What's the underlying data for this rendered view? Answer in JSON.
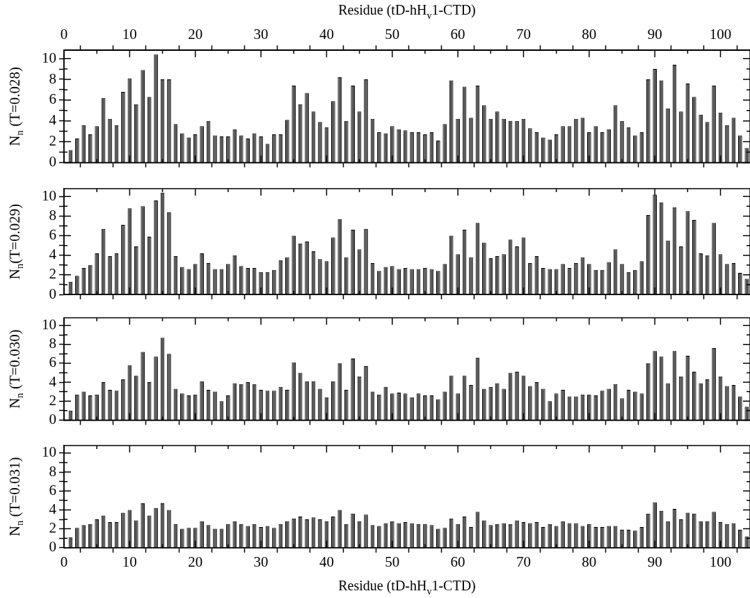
{
  "chart_data": [
    {
      "type": "bar",
      "x2label": "Residue (tD-hH$_{v}$1-CTD)",
      "ylabel": "N$_{n}$ (T=0.028)",
      "color": "#5a5a5a",
      "tick_labels": "y",
      "x": [
        1,
        2,
        3,
        4,
        5,
        6,
        7,
        8,
        9,
        10,
        11,
        12,
        13,
        14,
        15,
        16,
        17,
        18,
        19,
        20,
        21,
        22,
        23,
        24,
        25,
        26,
        27,
        28,
        29,
        30,
        31,
        32,
        33,
        34,
        35,
        36,
        37,
        38,
        39,
        40,
        41,
        42,
        43,
        44,
        45,
        46,
        47,
        48,
        49,
        50,
        51,
        52,
        53,
        54,
        55,
        56,
        57,
        58,
        59,
        60,
        61,
        62,
        63,
        64,
        65,
        66,
        67,
        68,
        69,
        70,
        71,
        72,
        73,
        74,
        75,
        76,
        77,
        78,
        79,
        80,
        81,
        82,
        83,
        84,
        85,
        86,
        87,
        88,
        89,
        90,
        91,
        92,
        93,
        94,
        95,
        96,
        97,
        98,
        99,
        100,
        101,
        102,
        103,
        104
      ],
      "values": [
        1.2,
        2.3,
        3.6,
        2.7,
        3.5,
        6.2,
        4.2,
        3.6,
        6.8,
        8.1,
        5.6,
        8.9,
        6.3,
        10.4,
        8.0,
        8.0,
        3.7,
        2.8,
        2.4,
        2.7,
        3.5,
        4.0,
        2.6,
        2.5,
        2.5,
        3.2,
        2.6,
        2.3,
        2.8,
        2.5,
        1.8,
        2.7,
        2.7,
        4.1,
        7.4,
        5.6,
        6.7,
        4.9,
        3.9,
        3.4,
        5.9,
        8.2,
        4.0,
        7.4,
        4.9,
        8.0,
        4.2,
        2.9,
        2.8,
        3.5,
        3.2,
        3.1,
        2.9,
        2.9,
        2.7,
        2.9,
        2.1,
        3.7,
        7.9,
        4.2,
        7.3,
        4.3,
        7.4,
        5.5,
        4.2,
        4.9,
        4.2,
        4.0,
        4.0,
        4.2,
        3.3,
        2.9,
        2.4,
        2.2,
        2.7,
        3.5,
        3.5,
        4.2,
        4.3,
        2.9,
        3.5,
        2.9,
        3.2,
        5.5,
        4.0,
        3.4,
        2.6,
        2.9,
        8.0,
        9.0,
        7.9,
        5.2,
        9.4,
        4.9,
        7.6,
        6.3,
        4.6,
        3.9,
        7.4,
        4.8,
        3.6,
        4.3,
        2.6,
        1.4
      ],
      "xlim": [
        0,
        104.5
      ],
      "xticks": [
        0,
        {
          "value": 5,
          "label": null
        },
        10,
        {
          "value": 15,
          "label": null
        },
        20,
        {
          "value": 25,
          "label": null
        },
        30,
        {
          "value": 35,
          "label": null
        },
        40,
        {
          "value": 45,
          "label": null
        },
        50,
        {
          "value": 55,
          "label": null
        },
        60,
        {
          "value": 65,
          "label": null
        },
        70,
        {
          "value": 75,
          "label": null
        },
        80,
        {
          "value": 85,
          "label": null
        },
        90,
        {
          "value": 95,
          "label": null
        },
        100
      ],
      "x2lim": [
        0,
        104.5
      ],
      "x2ticks": [
        0,
        {
          "value": 5,
          "label": null
        },
        10,
        {
          "value": 15,
          "label": null
        },
        20,
        {
          "value": 25,
          "label": null
        },
        30,
        {
          "value": 35,
          "label": null
        },
        40,
        {
          "value": 45,
          "label": null
        },
        50,
        {
          "value": 55,
          "label": null
        },
        60,
        {
          "value": 65,
          "label": null
        },
        70,
        {
          "value": 75,
          "label": null
        },
        80,
        {
          "value": 85,
          "label": null
        },
        90,
        {
          "value": 95,
          "label": null
        },
        100
      ],
      "ylim": [
        0,
        10.8
      ],
      "yticks": [
        0,
        {
          "value": 1,
          "label": null
        },
        2,
        {
          "value": 3,
          "label": null
        },
        4,
        {
          "value": 5,
          "label": null
        },
        6,
        {
          "value": 7,
          "label": null
        },
        8,
        {
          "value": 9,
          "label": null
        },
        10
      ]
    },
    {
      "type": "bar",
      "ylabel": "N$_{n}$(T=0.029)",
      "color": "#5a5a5a",
      "tick_labels": "y",
      "x": [
        1,
        2,
        3,
        4,
        5,
        6,
        7,
        8,
        9,
        10,
        11,
        12,
        13,
        14,
        15,
        16,
        17,
        18,
        19,
        20,
        21,
        22,
        23,
        24,
        25,
        26,
        27,
        28,
        29,
        30,
        31,
        32,
        33,
        34,
        35,
        36,
        37,
        38,
        39,
        40,
        41,
        42,
        43,
        44,
        45,
        46,
        47,
        48,
        49,
        50,
        51,
        52,
        53,
        54,
        55,
        56,
        57,
        58,
        59,
        60,
        61,
        62,
        63,
        64,
        65,
        66,
        67,
        68,
        69,
        70,
        71,
        72,
        73,
        74,
        75,
        76,
        77,
        78,
        79,
        80,
        81,
        82,
        83,
        84,
        85,
        86,
        87,
        88,
        89,
        90,
        91,
        92,
        93,
        94,
        95,
        96,
        97,
        98,
        99,
        100,
        101,
        102,
        103,
        104
      ],
      "values": [
        1.3,
        1.9,
        2.7,
        3.0,
        4.2,
        6.7,
        3.9,
        4.2,
        7.1,
        8.8,
        4.9,
        9.0,
        5.9,
        9.6,
        10.4,
        8.4,
        3.9,
        2.8,
        2.6,
        3.1,
        4.2,
        3.2,
        2.6,
        2.6,
        3.1,
        4.0,
        2.9,
        2.7,
        2.7,
        2.3,
        2.3,
        2.5,
        3.5,
        3.8,
        6.0,
        5.2,
        5.4,
        4.4,
        3.6,
        3.4,
        5.8,
        7.7,
        3.8,
        6.6,
        4.6,
        6.7,
        3.2,
        2.4,
        2.8,
        2.9,
        2.6,
        2.7,
        2.6,
        2.6,
        2.7,
        2.6,
        2.4,
        3.1,
        6.0,
        4.1,
        6.6,
        3.8,
        7.3,
        5.3,
        3.7,
        3.9,
        4.1,
        5.6,
        4.9,
        5.8,
        3.2,
        3.9,
        2.7,
        2.6,
        2.6,
        3.1,
        2.7,
        3.2,
        3.8,
        3.1,
        2.5,
        2.5,
        3.3,
        4.6,
        3.1,
        2.3,
        2.5,
        3.4,
        8.1,
        10.2,
        9.4,
        5.5,
        8.9,
        4.9,
        8.5,
        7.6,
        4.2,
        4.0,
        7.3,
        4.1,
        3.1,
        3.2,
        2.2,
        1.6
      ],
      "xlim": [
        0,
        104.5
      ],
      "xticks": [
        0,
        {
          "value": 5,
          "label": null
        },
        10,
        {
          "value": 15,
          "label": null
        },
        20,
        {
          "value": 25,
          "label": null
        },
        30,
        {
          "value": 35,
          "label": null
        },
        40,
        {
          "value": 45,
          "label": null
        },
        50,
        {
          "value": 55,
          "label": null
        },
        60,
        {
          "value": 65,
          "label": null
        },
        70,
        {
          "value": 75,
          "label": null
        },
        80,
        {
          "value": 85,
          "label": null
        },
        90,
        {
          "value": 95,
          "label": null
        },
        100
      ],
      "ylim": [
        0,
        10.8
      ],
      "yticks": [
        0,
        {
          "value": 1,
          "label": null
        },
        2,
        {
          "value": 3,
          "label": null
        },
        4,
        {
          "value": 5,
          "label": null
        },
        6,
        {
          "value": 7,
          "label": null
        },
        8,
        {
          "value": 9,
          "label": null
        },
        10
      ]
    },
    {
      "type": "bar",
      "ylabel": "N$_{n}$ (T=0.030)",
      "color": "#5a5a5a",
      "tick_labels": "y",
      "x": [
        1,
        2,
        3,
        4,
        5,
        6,
        7,
        8,
        9,
        10,
        11,
        12,
        13,
        14,
        15,
        16,
        17,
        18,
        19,
        20,
        21,
        22,
        23,
        24,
        25,
        26,
        27,
        28,
        29,
        30,
        31,
        32,
        33,
        34,
        35,
        36,
        37,
        38,
        39,
        40,
        41,
        42,
        43,
        44,
        45,
        46,
        47,
        48,
        49,
        50,
        51,
        52,
        53,
        54,
        55,
        56,
        57,
        58,
        59,
        60,
        61,
        62,
        63,
        64,
        65,
        66,
        67,
        68,
        69,
        70,
        71,
        72,
        73,
        74,
        75,
        76,
        77,
        78,
        79,
        80,
        81,
        82,
        83,
        84,
        85,
        86,
        87,
        88,
        89,
        90,
        91,
        92,
        93,
        94,
        95,
        96,
        97,
        98,
        99,
        100,
        101,
        102,
        103,
        104
      ],
      "values": [
        1.0,
        2.7,
        3.0,
        2.6,
        2.7,
        4.0,
        3.2,
        3.1,
        4.3,
        5.8,
        4.7,
        7.2,
        4.0,
        6.7,
        8.7,
        7.0,
        3.3,
        2.8,
        2.6,
        2.7,
        4.1,
        3.2,
        3.0,
        2.0,
        2.6,
        3.9,
        3.8,
        4.0,
        3.8,
        3.2,
        3.1,
        3.1,
        3.5,
        3.2,
        6.1,
        5.0,
        4.1,
        4.1,
        3.3,
        2.4,
        4.1,
        6.0,
        3.2,
        6.5,
        4.6,
        5.7,
        3.0,
        2.7,
        3.5,
        2.8,
        2.9,
        2.8,
        2.4,
        2.8,
        2.6,
        2.6,
        2.2,
        3.0,
        4.7,
        2.8,
        4.7,
        3.7,
        6.6,
        3.3,
        3.5,
        3.9,
        3.3,
        5.0,
        5.1,
        4.7,
        3.6,
        4.0,
        3.3,
        2.0,
        2.8,
        3.2,
        2.5,
        2.5,
        2.7,
        2.7,
        2.6,
        3.1,
        3.3,
        3.8,
        2.3,
        3.2,
        3.0,
        2.8,
        6.0,
        7.3,
        6.7,
        3.9,
        7.3,
        4.6,
        6.8,
        5.1,
        3.9,
        4.3,
        7.6,
        4.6,
        3.6,
        3.7,
        2.5,
        1.4
      ],
      "xlim": [
        0,
        104.5
      ],
      "xticks": [
        0,
        {
          "value": 5,
          "label": null
        },
        10,
        {
          "value": 15,
          "label": null
        },
        20,
        {
          "value": 25,
          "label": null
        },
        30,
        {
          "value": 35,
          "label": null
        },
        40,
        {
          "value": 45,
          "label": null
        },
        50,
        {
          "value": 55,
          "label": null
        },
        60,
        {
          "value": 65,
          "label": null
        },
        70,
        {
          "value": 75,
          "label": null
        },
        80,
        {
          "value": 85,
          "label": null
        },
        90,
        {
          "value": 95,
          "label": null
        },
        100
      ],
      "ylim": [
        0,
        10.8
      ],
      "yticks": [
        0,
        {
          "value": 1,
          "label": null
        },
        2,
        {
          "value": 3,
          "label": null
        },
        4,
        {
          "value": 5,
          "label": null
        },
        6,
        {
          "value": 7,
          "label": null
        },
        8,
        {
          "value": 9,
          "label": null
        },
        10
      ]
    },
    {
      "type": "bar",
      "xlabel": "Residue (tD-hH$_{v}$1-CTD)",
      "ylabel": "N$_{n}$ (T=0.031)",
      "color": "#5a5a5a",
      "x": [
        1,
        2,
        3,
        4,
        5,
        6,
        7,
        8,
        9,
        10,
        11,
        12,
        13,
        14,
        15,
        16,
        17,
        18,
        19,
        20,
        21,
        22,
        23,
        24,
        25,
        26,
        27,
        28,
        29,
        30,
        31,
        32,
        33,
        34,
        35,
        36,
        37,
        38,
        39,
        40,
        41,
        42,
        43,
        44,
        45,
        46,
        47,
        48,
        49,
        50,
        51,
        52,
        53,
        54,
        55,
        56,
        57,
        58,
        59,
        60,
        61,
        62,
        63,
        64,
        65,
        66,
        67,
        68,
        69,
        70,
        71,
        72,
        73,
        74,
        75,
        76,
        77,
        78,
        79,
        80,
        81,
        82,
        83,
        84,
        85,
        86,
        87,
        88,
        89,
        90,
        91,
        92,
        93,
        94,
        95,
        96,
        97,
        98,
        99,
        100,
        101,
        102,
        103,
        104
      ],
      "values": [
        1.1,
        2.1,
        2.4,
        2.5,
        3.0,
        3.4,
        2.7,
        2.7,
        3.7,
        4.0,
        2.9,
        4.7,
        3.4,
        4.2,
        4.7,
        4.0,
        2.5,
        2.0,
        2.1,
        2.1,
        2.8,
        2.4,
        2.0,
        2.0,
        2.5,
        2.8,
        2.5,
        2.3,
        2.5,
        2.2,
        2.3,
        2.1,
        2.5,
        2.8,
        3.1,
        3.3,
        3.0,
        3.2,
        3.0,
        2.8,
        3.3,
        4.0,
        2.5,
        3.6,
        2.8,
        3.5,
        2.4,
        2.3,
        2.6,
        2.8,
        2.6,
        2.7,
        2.6,
        2.5,
        2.5,
        2.4,
        2.0,
        2.1,
        3.1,
        2.5,
        3.3,
        2.2,
        3.8,
        2.9,
        2.4,
        2.5,
        2.6,
        2.5,
        2.9,
        2.7,
        2.6,
        2.7,
        2.2,
        2.5,
        2.3,
        2.8,
        2.6,
        2.6,
        2.3,
        2.5,
        2.2,
        2.2,
        2.3,
        2.3,
        1.9,
        1.9,
        1.8,
        2.2,
        3.6,
        4.8,
        3.9,
        2.8,
        4.1,
        3.0,
        3.7,
        3.6,
        2.8,
        2.8,
        3.8,
        2.7,
        2.5,
        2.6,
        1.9,
        1.2
      ],
      "xlim": [
        0,
        104.5
      ],
      "xticks": [
        0,
        {
          "value": 5,
          "label": null
        },
        10,
        {
          "value": 15,
          "label": null
        },
        20,
        {
          "value": 25,
          "label": null
        },
        30,
        {
          "value": 35,
          "label": null
        },
        40,
        {
          "value": 45,
          "label": null
        },
        50,
        {
          "value": 55,
          "label": null
        },
        60,
        {
          "value": 65,
          "label": null
        },
        70,
        {
          "value": 75,
          "label": null
        },
        80,
        {
          "value": 85,
          "label": null
        },
        90,
        {
          "value": 95,
          "label": null
        },
        100
      ],
      "ylim": [
        0,
        10.8
      ],
      "yticks": [
        0,
        {
          "value": 1,
          "label": null
        },
        2,
        {
          "value": 3,
          "label": null
        },
        4,
        {
          "value": 5,
          "label": null
        },
        6,
        {
          "value": 7,
          "label": null
        },
        8,
        {
          "value": 9,
          "label": null
        },
        10
      ]
    }
  ]
}
